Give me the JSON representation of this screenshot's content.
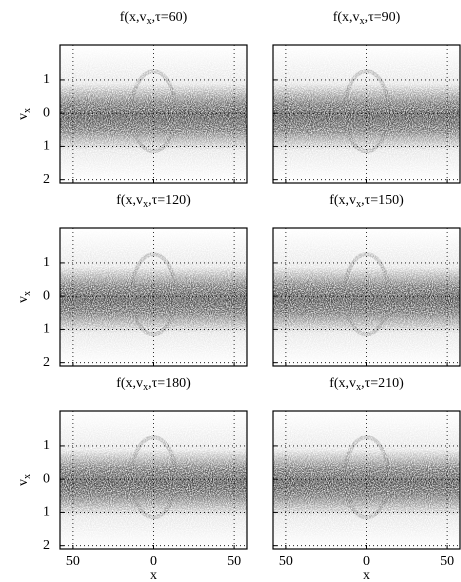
{
  "chart_data": [
    {
      "type": "image",
      "title": [
        "f(x,v",
        "x",
        ",τ=60)"
      ],
      "ylabel": [
        "v",
        "x"
      ],
      "xlim": [
        -58,
        58
      ],
      "ylim": [
        -2.1,
        2.05
      ],
      "yticks": [
        {
          "value": 1,
          "label": "1"
        },
        0,
        {
          "value": -1,
          "label": "1"
        },
        {
          "value": -2,
          "label": "2"
        }
      ],
      "grid": true
    },
    {
      "type": "image",
      "title": [
        "f(x,v",
        "x",
        ",τ=90)"
      ],
      "xlim": [
        -58,
        58
      ],
      "ylim": [
        -2.1,
        2.05
      ],
      "grid": true
    },
    {
      "type": "image",
      "title": [
        "f(x,v",
        "x",
        ",τ=120)"
      ],
      "ylabel": [
        "v",
        "x"
      ],
      "xlim": [
        -58,
        58
      ],
      "ylim": [
        -2.1,
        2.05
      ],
      "yticks": [
        {
          "value": 1,
          "label": "1"
        },
        0,
        {
          "value": -1,
          "label": "1"
        },
        {
          "value": -2,
          "label": "2"
        }
      ],
      "grid": true
    },
    {
      "type": "image",
      "title": [
        "f(x,v",
        "x",
        ",τ=150)"
      ],
      "xlim": [
        -58,
        58
      ],
      "ylim": [
        -2.1,
        2.05
      ],
      "grid": true
    },
    {
      "type": "image",
      "title": [
        "f(x,v",
        "x",
        ",τ=180)"
      ],
      "ylabel": [
        "v",
        "x"
      ],
      "xlabel": "x",
      "xlim": [
        -58,
        58
      ],
      "ylim": [
        -2.1,
        2.05
      ],
      "xticks": [
        {
          "value": -50,
          "label": "50"
        },
        0,
        50
      ],
      "yticks": [
        {
          "value": 1,
          "label": "1"
        },
        0,
        {
          "value": -1,
          "label": "1"
        },
        {
          "value": -2,
          "label": "2"
        }
      ],
      "grid": true
    },
    {
      "type": "image",
      "title": [
        "f(x,v",
        "x",
        ",τ=210)"
      ],
      "xlabel": "x",
      "xlim": [
        -58,
        58
      ],
      "ylim": [
        -2.1,
        2.05
      ],
      "xticks": [
        {
          "value": -50,
          "label": "50"
        },
        0,
        50
      ],
      "grid": true
    }
  ]
}
